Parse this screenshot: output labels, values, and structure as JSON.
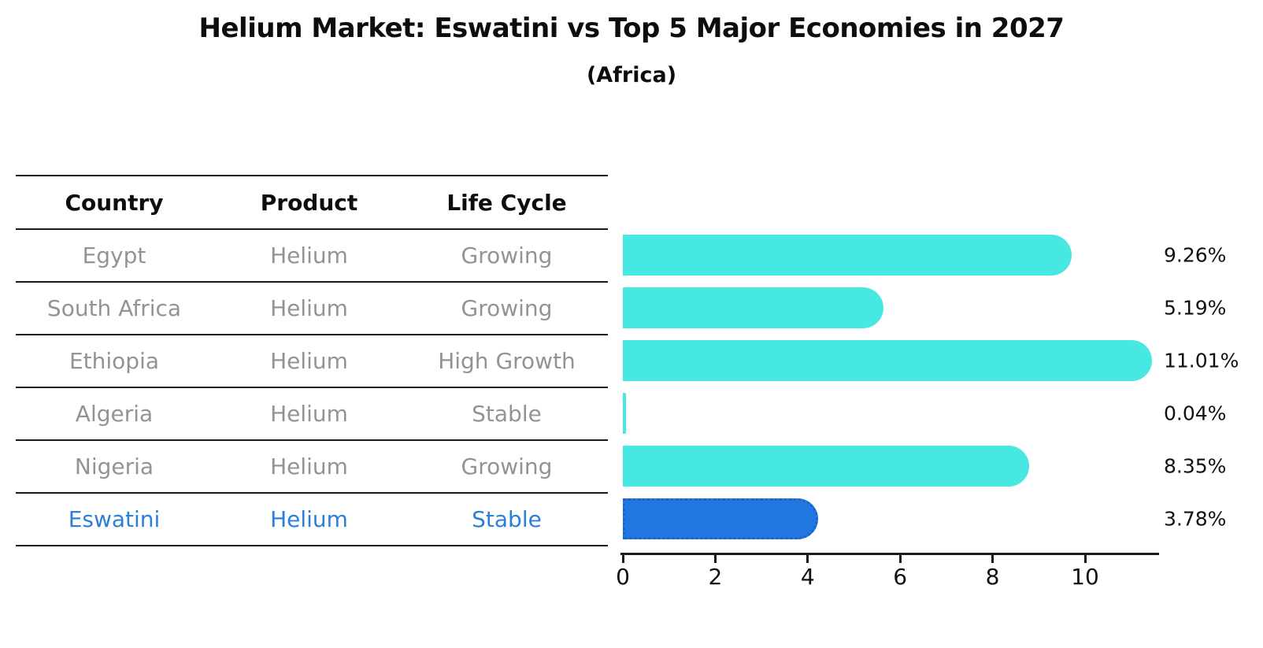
{
  "header": {
    "title": "Helium Market: Eswatini vs Top 5 Major Economies in 2027",
    "subtitle": "(Africa)"
  },
  "table": {
    "columns": [
      "Country",
      "Product",
      "Life Cycle"
    ],
    "rows": [
      {
        "country": "Egypt",
        "product": "Helium",
        "life_cycle": "Growing",
        "highlight": false
      },
      {
        "country": "South Africa",
        "product": "Helium",
        "life_cycle": "Growing",
        "highlight": false
      },
      {
        "country": "Ethiopia",
        "product": "Helium",
        "life_cycle": "High Growth",
        "highlight": false
      },
      {
        "country": "Algeria",
        "product": "Helium",
        "life_cycle": "Stable",
        "highlight": false
      },
      {
        "country": "Nigeria",
        "product": "Helium",
        "life_cycle": "Growing",
        "highlight": false
      },
      {
        "country": "Eswatini",
        "product": "Helium",
        "life_cycle": "Stable",
        "highlight": true
      }
    ]
  },
  "chart_data": {
    "type": "bar",
    "orientation": "horizontal",
    "title": "Helium Market: Eswatini vs Top 5 Major Economies in 2027",
    "subtitle": "(Africa)",
    "categories": [
      "Egypt",
      "South Africa",
      "Ethiopia",
      "Algeria",
      "Nigeria",
      "Eswatini"
    ],
    "values": [
      9.26,
      5.19,
      11.01,
      0.04,
      8.35,
      3.78
    ],
    "value_labels": [
      "9.26%",
      "5.19%",
      "11.01%",
      "0.04%",
      "8.35%",
      "3.78%"
    ],
    "highlight_index": 5,
    "x_ticks": [
      "0",
      "2",
      "4",
      "6",
      "8",
      "10"
    ],
    "x_tick_values": [
      0,
      2,
      4,
      6,
      8,
      10
    ],
    "xlim": [
      0,
      11.6
    ],
    "grid": false,
    "legend": "none",
    "colors": {
      "bar": "#47e8e2",
      "highlight_bar": "#2176e0",
      "highlight_border": "#1a62cc",
      "text_gray": "#919496",
      "text_blue": "#2a7fd9",
      "axis": "#1a1a1a"
    }
  }
}
